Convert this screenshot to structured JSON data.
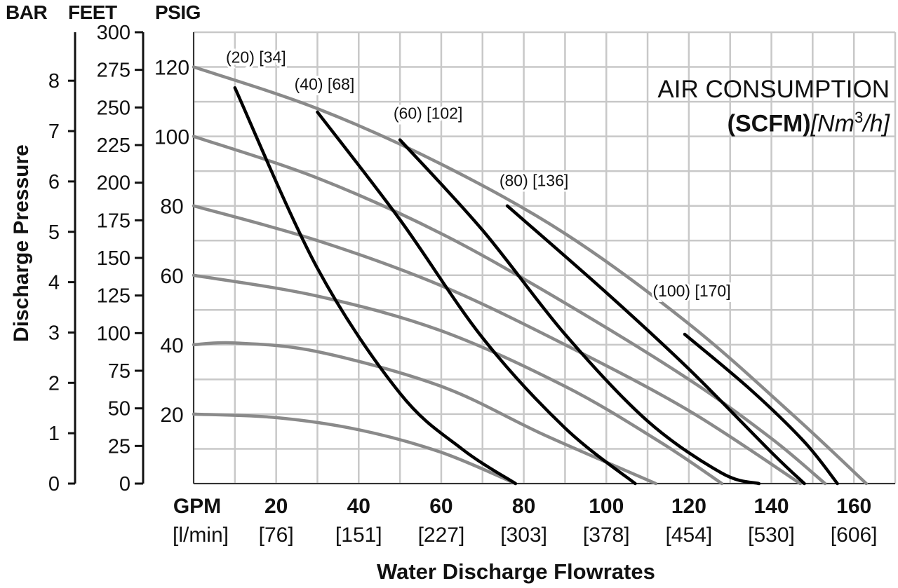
{
  "chart_data": {
    "type": "line",
    "header_labels": {
      "bar": "BAR",
      "feet": "FEET",
      "psig": "PSIG"
    },
    "ylabel": "Discharge Pressure",
    "xlabel": "Water Discharge Flowrates",
    "legend_title": {
      "line1": "AIR CONSUMPTION",
      "scfm": "(SCFM)",
      "nm": "[Nm",
      "sup": "3",
      "h": "/h]"
    },
    "x_unit_label": {
      "gpm": "GPM",
      "lmin": "[l/min]"
    },
    "x_ticks": [
      20,
      40,
      60,
      80,
      100,
      120,
      140,
      160
    ],
    "x_ticks_lmin": [
      "[76]",
      "[151]",
      "[227]",
      "[303]",
      "[378]",
      "[454]",
      "[530]",
      "[606]"
    ],
    "psig_ticks": [
      "20",
      "40",
      "60",
      "80",
      "100",
      "120"
    ],
    "feet_ticks": [
      "0",
      "25",
      "50",
      "75",
      "100",
      "125",
      "150",
      "175",
      "200",
      "225",
      "250",
      "275",
      "300"
    ],
    "bar_ticks": [
      "0",
      "1",
      "2",
      "3",
      "4",
      "5",
      "6",
      "7",
      "8"
    ],
    "xlim": [
      0,
      170
    ],
    "ylim_psig": [
      0,
      130
    ],
    "grid": true,
    "speed_curves": [
      {
        "points": [
          [
            0,
            120
          ],
          [
            30,
            108
          ],
          [
            60,
            92
          ],
          [
            90,
            72
          ],
          [
            120,
            46
          ],
          [
            145,
            20
          ],
          [
            163,
            0
          ]
        ]
      },
      {
        "points": [
          [
            0,
            100
          ],
          [
            30,
            88
          ],
          [
            60,
            72
          ],
          [
            90,
            52
          ],
          [
            120,
            30
          ],
          [
            140,
            13
          ],
          [
            153,
            0
          ]
        ]
      },
      {
        "points": [
          [
            0,
            80
          ],
          [
            30,
            70
          ],
          [
            60,
            57
          ],
          [
            90,
            40
          ],
          [
            120,
            21
          ],
          [
            147,
            0
          ]
        ]
      },
      {
        "points": [
          [
            0,
            60
          ],
          [
            30,
            54
          ],
          [
            60,
            44
          ],
          [
            90,
            28
          ],
          [
            113,
            12
          ],
          [
            128,
            0
          ]
        ]
      },
      {
        "points": [
          [
            0,
            40
          ],
          [
            10,
            40.5
          ],
          [
            30,
            38
          ],
          [
            60,
            28
          ],
          [
            85,
            14
          ],
          [
            112,
            0
          ]
        ]
      },
      {
        "points": [
          [
            0,
            20
          ],
          [
            20,
            19
          ],
          [
            40,
            15.5
          ],
          [
            60,
            9
          ],
          [
            78,
            0
          ]
        ]
      }
    ],
    "air_curves": [
      {
        "label": "(20) [34]",
        "points": [
          [
            10,
            114
          ],
          [
            30,
            62
          ],
          [
            50,
            26
          ],
          [
            65,
            10
          ],
          [
            78,
            0
          ]
        ]
      },
      {
        "label": "(40) [68]",
        "points": [
          [
            30,
            107
          ],
          [
            50,
            76
          ],
          [
            70,
            42
          ],
          [
            90,
            16
          ],
          [
            107,
            0
          ]
        ]
      },
      {
        "label": "(60) [102]",
        "points": [
          [
            50,
            99
          ],
          [
            70,
            73
          ],
          [
            90,
            43
          ],
          [
            110,
            18
          ],
          [
            128,
            3
          ],
          [
            137,
            0
          ]
        ]
      },
      {
        "label": "(80) [136]",
        "points": [
          [
            76,
            80
          ],
          [
            100,
            55
          ],
          [
            120,
            33
          ],
          [
            140,
            9
          ],
          [
            148,
            0
          ]
        ]
      },
      {
        "label": "(100) [170]",
        "points": [
          [
            119,
            43
          ],
          [
            135,
            27
          ],
          [
            148,
            12
          ],
          [
            156,
            0
          ]
        ]
      }
    ],
    "colors": {
      "speed": "#8a8a8a",
      "air": "#000000",
      "grid": "#c8c8c8"
    }
  }
}
